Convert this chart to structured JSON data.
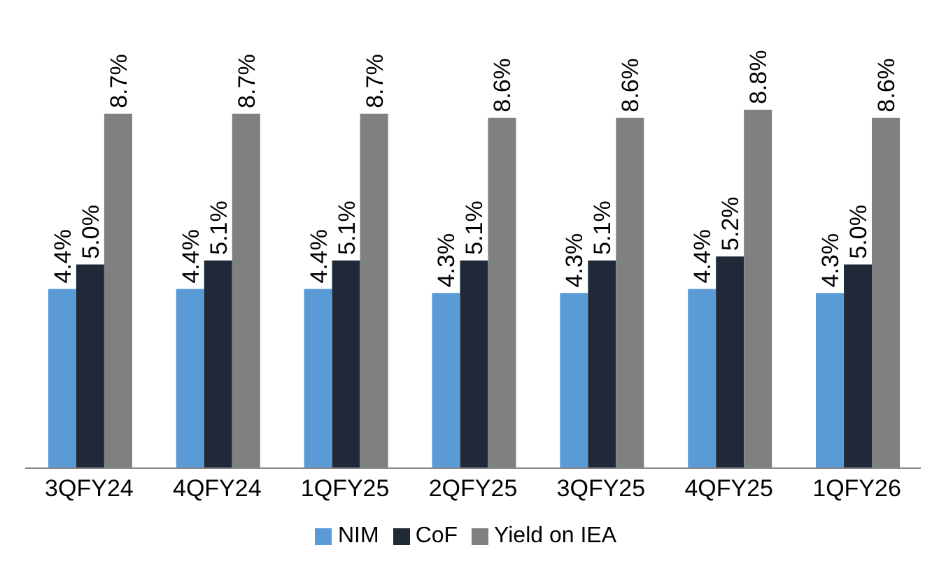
{
  "chart_data": {
    "type": "bar",
    "categories": [
      "3QFY24",
      "4QFY24",
      "1QFY25",
      "2QFY25",
      "3QFY25",
      "4QFY25",
      "1QFY26"
    ],
    "series": [
      {
        "name": "NIM",
        "color": "#5b9bd5",
        "values": [
          4.4,
          4.4,
          4.4,
          4.3,
          4.3,
          4.4,
          4.3
        ],
        "value_labels": [
          "4.4%",
          "4.4%",
          "4.4%",
          "4.3%",
          "4.3%",
          "4.4%",
          "4.3%"
        ]
      },
      {
        "name": "CoF",
        "color": "#1f2937",
        "values": [
          5.0,
          5.1,
          5.1,
          5.1,
          5.1,
          5.2,
          5.0
        ],
        "value_labels": [
          "5.0%",
          "5.1%",
          "5.1%",
          "5.1%",
          "5.1%",
          "5.2%",
          "5.0%"
        ]
      },
      {
        "name": "Yield on IEA",
        "color": "#808080",
        "values": [
          8.7,
          8.7,
          8.7,
          8.6,
          8.6,
          8.8,
          8.6
        ],
        "value_labels": [
          "8.7%",
          "8.7%",
          "8.7%",
          "8.6%",
          "8.6%",
          "8.8%",
          "8.6%"
        ]
      }
    ],
    "legend": "bottom",
    "grid": false
  }
}
